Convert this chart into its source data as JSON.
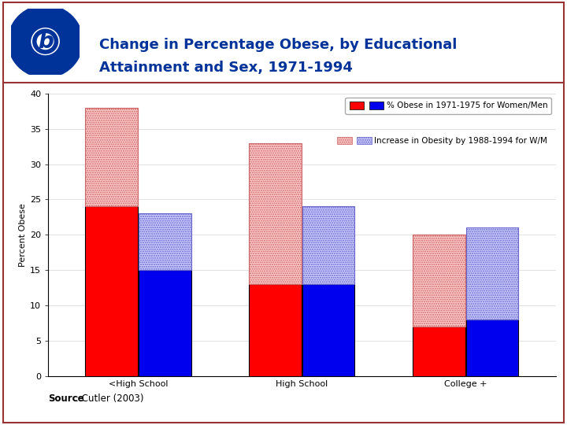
{
  "title_line1": "Change in Percentage Obese, by Educational",
  "title_line2": "Attainment and Sex, 1971-1994",
  "source_bold": "Source",
  "source_rest": ": Cutler (2003)",
  "ylabel": "Percent Obese",
  "categories": [
    "<High School",
    "High School",
    "College +"
  ],
  "women_base": [
    24,
    13,
    7
  ],
  "men_base": [
    15,
    13,
    8
  ],
  "women_increase": [
    14,
    20,
    13
  ],
  "men_increase": [
    8,
    11,
    13
  ],
  "ylim": [
    0,
    40
  ],
  "yticks": [
    0,
    5,
    10,
    15,
    20,
    25,
    30,
    35,
    40
  ],
  "bar_width": 0.32,
  "women_base_color": "#FF0000",
  "men_base_color": "#0000EE",
  "women_hatch_facecolor": "#FFCCCC",
  "men_hatch_facecolor": "#CCCCFF",
  "women_hatch_edgecolor": "#CC6666",
  "men_hatch_edgecolor": "#6666CC",
  "background_color": "#FFFFFF",
  "title_color": "#003399",
  "legend_label1": "% Obese in 1971-1975 for Women/Men",
  "legend_label2": "Increase in Obesity by 1988-1994 for W/M",
  "border_color": "#993333",
  "header_line_color": "#993333"
}
